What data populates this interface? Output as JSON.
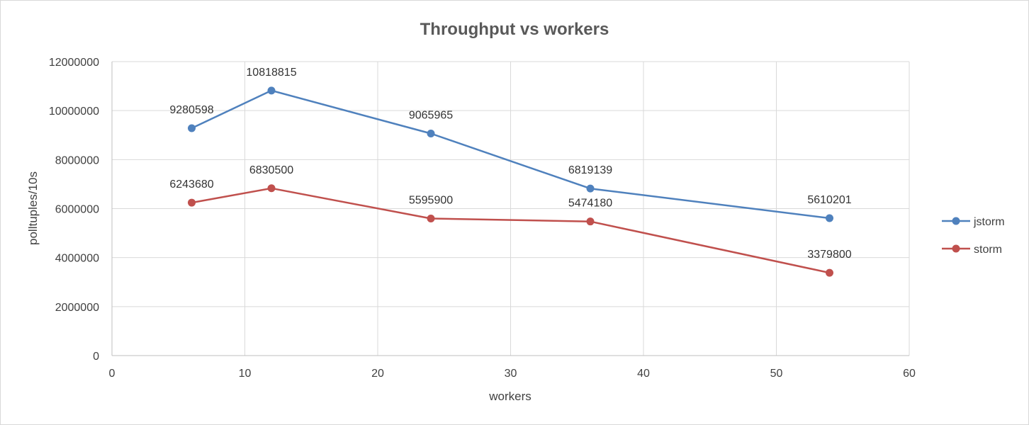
{
  "chart_data": {
    "type": "line",
    "title": "Throughput vs workers",
    "xlabel": "workers",
    "ylabel": "polltuples/10s",
    "xlim": [
      0,
      60
    ],
    "ylim": [
      0,
      12000000
    ],
    "x_ticks": [
      "0",
      "10",
      "20",
      "30",
      "40",
      "50",
      "60"
    ],
    "y_ticks": [
      "0",
      "2000000",
      "4000000",
      "6000000",
      "8000000",
      "10000000",
      "12000000"
    ],
    "grid": true,
    "legend_position": "right",
    "x": [
      6,
      12,
      24,
      36,
      54
    ],
    "series": [
      {
        "name": "jstorm",
        "color": "#4f81bd",
        "values": [
          9280598,
          10818815,
          9065965,
          6819139,
          5610201
        ],
        "labels": [
          "9280598",
          "10818815",
          "9065965",
          "6819139",
          "5610201"
        ]
      },
      {
        "name": "storm",
        "color": "#c0504d",
        "values": [
          6243680,
          6830500,
          5595900,
          5474180,
          3379800
        ],
        "labels": [
          "6243680",
          "6830500",
          "5595900",
          "5474180",
          "3379800"
        ]
      }
    ]
  }
}
